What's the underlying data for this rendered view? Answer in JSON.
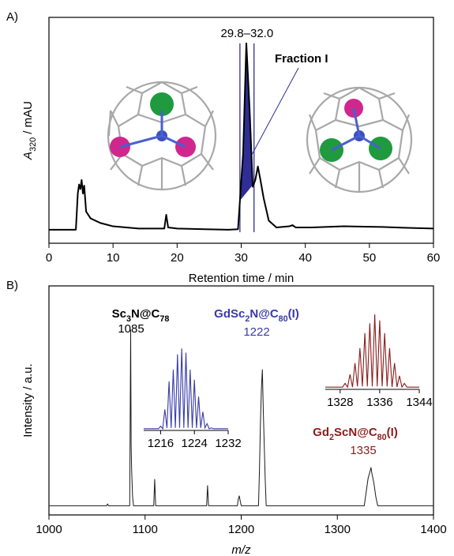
{
  "chart_data": [
    {
      "type": "line",
      "panel": "A)",
      "xlabel": "Retention time / min",
      "ylabel": [
        "A",
        "320",
        " / mAU"
      ],
      "xlim": [
        0,
        60
      ],
      "xticks": [
        0,
        10,
        20,
        30,
        40,
        50,
        60
      ],
      "ylim": [
        0,
        100
      ],
      "x": [
        0,
        4.2,
        4.5,
        4.7,
        4.9,
        5.1,
        5.3,
        5.5,
        5.8,
        6.5,
        8,
        10,
        14,
        18,
        18.3,
        18.6,
        20,
        28,
        29.5,
        30.3,
        30.8,
        31.3,
        31.8,
        32.2,
        32.6,
        33,
        33.5,
        34.3,
        35.5,
        37.5,
        38,
        38.5,
        41,
        46,
        50,
        52,
        56,
        60
      ],
      "series": [
        {
          "color": "#000000",
          "values": [
            6,
            6,
            22,
            26,
            24,
            28,
            22,
            25.5,
            14,
            11,
            9,
            7.5,
            6.5,
            6.5,
            12.6,
            7,
            6.5,
            6,
            6.2,
            40,
            88.5,
            60,
            25,
            28,
            34,
            28,
            20,
            10,
            7,
            7.5,
            8,
            7,
            7,
            7.5,
            7.3,
            7.2,
            6.8,
            6.5
          ]
        }
      ],
      "fraction": {
        "range": [
          29.8,
          32.0
        ],
        "label": "29.8–32.0",
        "name": "Fraction I",
        "color": "#2e2e96"
      }
    },
    {
      "type": "line",
      "panel": "B)",
      "xlabel": "m/z",
      "ylabel": "Intensity / a.u.",
      "xlim": [
        1000,
        1400
      ],
      "xticks": [
        1000,
        1100,
        1200,
        1300,
        1400
      ],
      "ylim": [
        0,
        100
      ],
      "x": [
        1000,
        1060,
        1061,
        1062,
        1084,
        1085,
        1085.5,
        1086,
        1087,
        1088,
        1109,
        1110,
        1111,
        1164,
        1165,
        1166,
        1196,
        1197,
        1198,
        1199,
        1200,
        1218,
        1219,
        1220,
        1221,
        1222,
        1223,
        1224,
        1225,
        1226,
        1328,
        1330,
        1332,
        1334,
        1335,
        1336,
        1338,
        1340,
        1342,
        1400
      ],
      "series": [
        {
          "color": "#1a1a1a",
          "values": [
            4,
            4,
            4.8,
            4,
            4,
            80.7,
            30,
            20,
            8,
            4,
            4,
            15.5,
            4,
            4,
            12.8,
            4,
            4,
            7,
            8.3,
            6,
            4,
            4,
            20,
            40,
            55,
            63.4,
            45,
            30,
            15,
            4,
            4,
            10,
            16,
            19,
            20.7,
            18,
            14,
            8,
            4,
            4
          ]
        }
      ],
      "annotations": [
        {
          "formula": [
            "Sc",
            "3",
            "N@C",
            "78"
          ],
          "mass": "1085",
          "color": "#000000"
        },
        {
          "formula": [
            "GdSc",
            "2",
            "N@C",
            "80",
            "(I)"
          ],
          "mass": "1222",
          "color": "#3a3aa8"
        },
        {
          "formula": [
            "Gd",
            "2",
            "ScN@C",
            "80",
            "(I)"
          ],
          "mass": "1335",
          "color": "#8b1c1c"
        }
      ],
      "insets": [
        {
          "xlim": [
            1212,
            1232
          ],
          "xticks": [
            1216,
            1224,
            1232
          ],
          "ylim": [
            0,
            100
          ],
          "color": "#3a3aa8",
          "x": [
            1212,
            1215.5,
            1216,
            1216.5,
            1217,
            1217.5,
            1218,
            1218.5,
            1219,
            1219.5,
            1220,
            1220.5,
            1221,
            1221.5,
            1222,
            1222.5,
            1223,
            1223.5,
            1224,
            1224.5,
            1225,
            1225.5,
            1226,
            1226.5,
            1227,
            1227.5,
            1228,
            1228.5,
            1232
          ],
          "values": [
            2,
            2,
            5,
            2,
            25,
            3,
            58,
            3,
            72,
            3,
            90,
            3,
            97,
            3,
            92,
            3,
            72,
            3,
            60,
            3,
            40,
            3,
            22,
            3,
            8,
            2,
            3,
            2,
            2
          ]
        },
        {
          "xlim": [
            1325,
            1344
          ],
          "xticks": [
            1328,
            1336,
            1344
          ],
          "ylim": [
            0,
            100
          ],
          "color": "#8b1c1c",
          "x": [
            1325,
            1328.5,
            1329,
            1329.5,
            1330,
            1330.5,
            1331,
            1331.5,
            1332,
            1332.5,
            1333,
            1333.5,
            1334,
            1334.5,
            1335,
            1335.5,
            1336,
            1336.5,
            1337,
            1337.5,
            1338,
            1338.5,
            1339,
            1339.5,
            1340,
            1340.5,
            1341,
            1341.5,
            1344
          ],
          "values": [
            3,
            3,
            8,
            3,
            20,
            3,
            35,
            4,
            55,
            4,
            75,
            4,
            88,
            4,
            100,
            4,
            92,
            4,
            75,
            4,
            55,
            3,
            35,
            3,
            18,
            3,
            8,
            3,
            3
          ]
        }
      ]
    }
  ]
}
